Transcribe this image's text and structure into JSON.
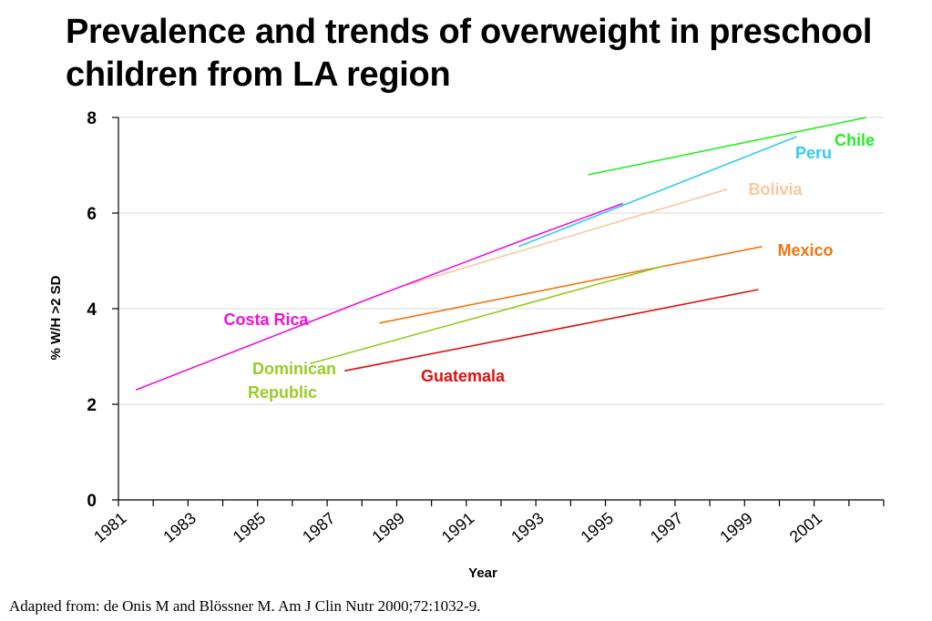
{
  "title": "Prevalence and trends of overweight in preschool children from LA region",
  "source": "Adapted from: de Onis M and Blössner M. Am J Clin Nutr 2000;72:1032-9.",
  "chart_data": {
    "type": "line",
    "xlabel": "Year",
    "ylabel": "% W/H >2 SD",
    "xlim": [
      1981,
      2003
    ],
    "ylim": [
      0,
      8
    ],
    "yticks": [
      "0",
      "2",
      "4",
      "6",
      "8"
    ],
    "xticks": [
      "1981",
      "1983",
      "1985",
      "1987",
      "1989",
      "1991",
      "1993",
      "1995",
      "1997",
      "1999",
      "2001"
    ],
    "grid": "horizontal",
    "series": [
      {
        "name": "Chile",
        "color": "#22ee22",
        "x": [
          1994.5,
          2002.5
        ],
        "y": [
          6.8,
          8.0
        ]
      },
      {
        "name": "Peru",
        "color": "#33ccee",
        "x": [
          1992.5,
          2000.5
        ],
        "y": [
          5.3,
          7.6
        ]
      },
      {
        "name": "Bolivia",
        "color": "#f8c8a0",
        "x": [
          1989.3,
          1998.5
        ],
        "y": [
          4.5,
          6.5
        ]
      },
      {
        "name": "Mexico",
        "color": "#ee7711",
        "x": [
          1988.5,
          1999.5
        ],
        "y": [
          3.7,
          5.3
        ]
      },
      {
        "name": "Costa Rica",
        "color": "#ee11dd",
        "x": [
          1981.5,
          1988,
          1992.5,
          1995.5
        ],
        "y": [
          2.3,
          4.15,
          5.4,
          6.2
        ]
      },
      {
        "name": "Dominican Republic",
        "color": "#99cc22",
        "x": [
          1986.5,
          1996.7
        ],
        "y": [
          2.85,
          4.9
        ]
      },
      {
        "name": "Guatemala",
        "color": "#dd1111",
        "x": [
          1987.5,
          1999.4
        ],
        "y": [
          2.7,
          4.4
        ]
      }
    ]
  }
}
